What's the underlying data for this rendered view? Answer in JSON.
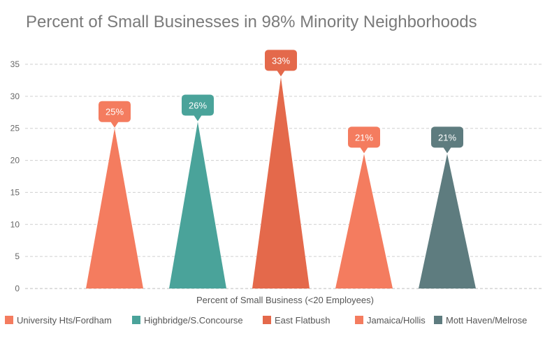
{
  "chart_data": {
    "type": "bar",
    "title": "Percent of Small Businesses in 98% Minority Neighborhoods",
    "xlabel": "Percent of Small Business (<20 Employees)",
    "ylabel": "",
    "ylim": [
      0,
      35
    ],
    "yticks": [
      "0",
      "5",
      "10",
      "15",
      "20",
      "25",
      "30",
      "35"
    ],
    "grid": true,
    "legend_position": "bottom",
    "categories": [
      "University Hts/Fordham",
      "Highbridge/S.Concourse",
      "East Flatbush",
      "Jamaica/Hollis",
      "Mott Haven/Melrose"
    ],
    "values": [
      25,
      26,
      33,
      21,
      21
    ],
    "data_labels": [
      "25%",
      "26%",
      "33%",
      "21%",
      "21%"
    ],
    "colors": [
      "#f47c5f",
      "#4aa39a",
      "#e4694b",
      "#f47c5f",
      "#5e7c7f"
    ]
  }
}
